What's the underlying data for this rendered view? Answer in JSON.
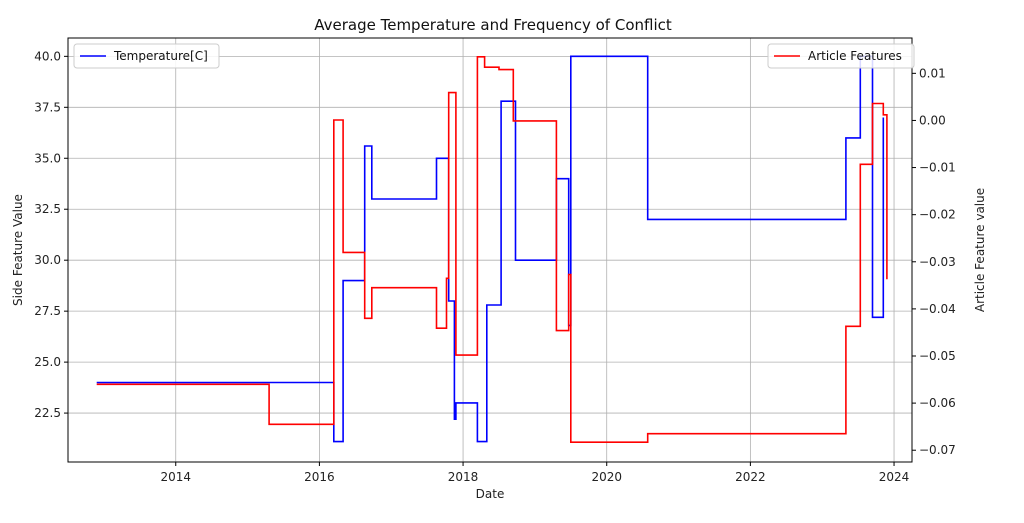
{
  "chart_data": {
    "type": "line",
    "step": true,
    "title": "Average Temperature and Frequency of Conflict",
    "xlabel": "Date",
    "ylabel_left": "Side Feature Value",
    "ylabel_right": "Article Feature value",
    "x_ticks": [
      "2014",
      "2016",
      "2018",
      "2020",
      "2022",
      "2024"
    ],
    "x_tick_values": [
      2014,
      2016,
      2018,
      2020,
      2022,
      2024
    ],
    "xlim": [
      2012.5,
      2024.25
    ],
    "ylim_left": [
      20.1,
      40.9
    ],
    "ylim_right": [
      -0.0725,
      0.0175
    ],
    "y_ticks_left": [
      "22.5",
      "25.0",
      "27.5",
      "30.0",
      "32.5",
      "35.0",
      "37.5",
      "40.0"
    ],
    "y_tick_values_left": [
      22.5,
      25.0,
      27.5,
      30.0,
      32.5,
      35.0,
      37.5,
      40.0
    ],
    "y_ticks_right": [
      "−0.07",
      "−0.06",
      "−0.05",
      "−0.04",
      "−0.03",
      "−0.02",
      "−0.01",
      "0.00",
      "0.01"
    ],
    "y_tick_values_right": [
      -0.07,
      -0.06,
      -0.05,
      -0.04,
      -0.03,
      -0.02,
      -0.01,
      0.0,
      0.01
    ],
    "grid": true,
    "series": [
      {
        "name": "Temperature[C]",
        "axis": "left",
        "color": "#0000ff",
        "legend": "top-left",
        "x": [
          2012.9,
          2016.2,
          2016.33,
          2016.63,
          2016.73,
          2017.63,
          2017.8,
          2017.88,
          2017.9,
          2018.2,
          2018.33,
          2018.53,
          2018.73,
          2019.3,
          2019.47,
          2019.5,
          2020.57,
          2023.33,
          2023.53,
          2023.7,
          2023.85
        ],
        "y": [
          24.0,
          21.1,
          29.0,
          35.6,
          33.0,
          35.0,
          28.0,
          22.2,
          23.0,
          21.1,
          27.8,
          37.8,
          30.0,
          34.0,
          26.8,
          40.0,
          32.0,
          36.0,
          40.0,
          27.2,
          37.0
        ]
      },
      {
        "name": "Article Features",
        "axis": "right",
        "color": "#ff0000",
        "legend": "top-right",
        "x": [
          2012.9,
          2015.3,
          2016.2,
          2016.33,
          2016.63,
          2016.73,
          2017.63,
          2017.77,
          2017.8,
          2017.9,
          2018.2,
          2018.3,
          2018.5,
          2018.7,
          2019.3,
          2019.47,
          2019.5,
          2020.57,
          2023.33,
          2023.53,
          2023.7,
          2023.85,
          2023.9
        ],
        "y": [
          -0.056,
          -0.0645,
          0.0001,
          -0.028,
          -0.042,
          -0.0355,
          -0.0441,
          -0.0335,
          0.0059,
          -0.0498,
          0.0135,
          0.0113,
          0.0108,
          -0.0001,
          -0.0446,
          -0.0327,
          -0.0683,
          -0.0665,
          -0.0437,
          -0.0093,
          0.0036,
          0.0012,
          -0.0337
        ]
      }
    ]
  }
}
